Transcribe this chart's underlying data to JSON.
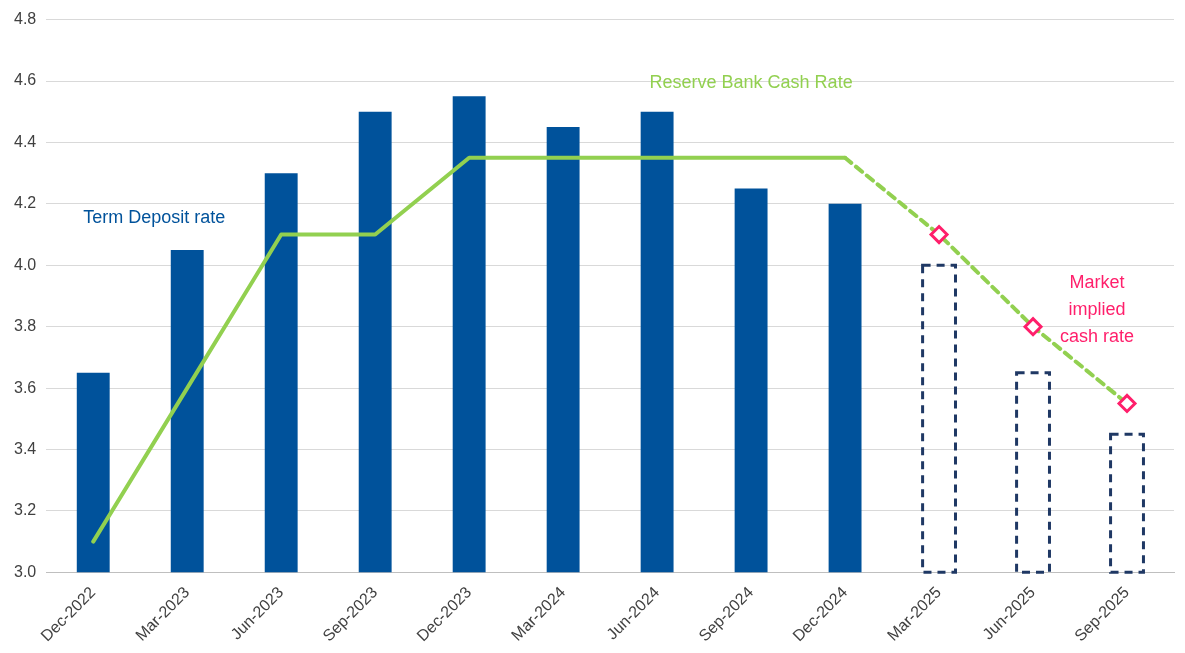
{
  "chart_data": {
    "type": "bar",
    "categories": [
      "Dec-2022",
      "Mar-2023",
      "Jun-2023",
      "Sep-2023",
      "Dec-2023",
      "Mar-2024",
      "Jun-2024",
      "Sep-2024",
      "Dec-2024",
      "Mar-2025",
      "Jun-2025",
      "Sep-2025"
    ],
    "series": [
      {
        "name": "Term Deposit rate",
        "color": "#00529b",
        "values": [
          3.65,
          4.05,
          4.3,
          4.5,
          4.55,
          4.45,
          4.5,
          4.25,
          4.2,
          null,
          null,
          null
        ]
      },
      {
        "color": "#1f3864",
        "line_style": "dashed",
        "values": [
          null,
          null,
          null,
          null,
          null,
          null,
          null,
          null,
          null,
          4.0,
          3.65,
          3.45
        ]
      },
      {
        "name": "Reserve Bank Cash Rate",
        "type": "line",
        "color": "#92d050",
        "line_style": "solid",
        "marker": "none",
        "values": [
          3.1,
          3.6,
          4.1,
          4.1,
          4.35,
          4.35,
          4.35,
          4.35,
          4.35,
          null,
          null,
          null
        ]
      },
      {
        "type": "line",
        "color": "#92d050",
        "line_style": "dashed",
        "marker": "none",
        "values": [
          null,
          null,
          null,
          null,
          null,
          null,
          null,
          null,
          4.35,
          4.1,
          3.8,
          3.55
        ]
      },
      {
        "name": "Market implied cash rate",
        "type": "scatter",
        "color": "#ff1f6b",
        "marker": "diamond",
        "values": [
          null,
          null,
          null,
          null,
          null,
          null,
          null,
          null,
          null,
          4.1,
          3.8,
          3.55
        ]
      }
    ],
    "ylim": [
      3.0,
      4.8
    ],
    "yticks": [
      {
        "value": 3.0,
        "label": "3.0"
      },
      {
        "value": 3.2,
        "label": "3.2"
      },
      {
        "value": 3.4,
        "label": "3.4"
      },
      {
        "value": 3.6,
        "label": "3.6"
      },
      {
        "value": 3.8,
        "label": "3.8"
      },
      {
        "value": 4.0,
        "label": "4.0"
      },
      {
        "value": 4.2,
        "label": "4.2"
      },
      {
        "value": 4.4,
        "label": "4.4"
      },
      {
        "value": 4.6,
        "label": "4.6"
      },
      {
        "value": 4.8,
        "label": "4.8"
      }
    ],
    "grid": "y",
    "legend": false
  }
}
